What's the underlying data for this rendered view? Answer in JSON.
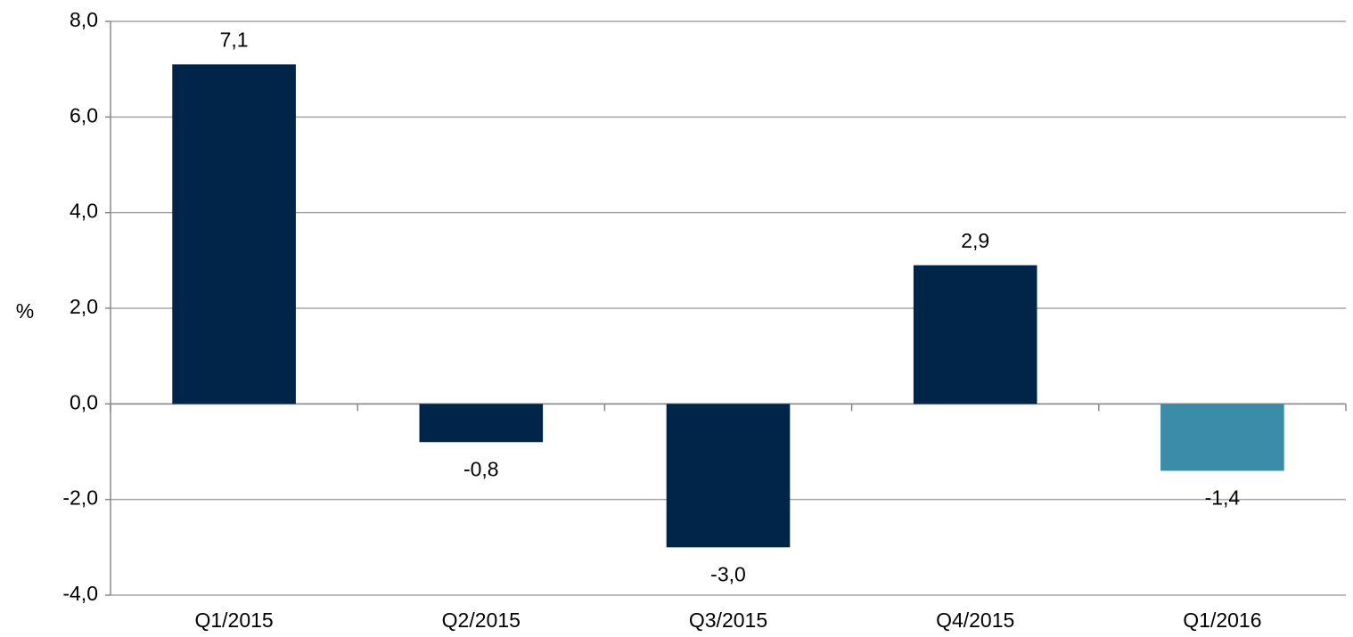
{
  "chart_data": {
    "type": "bar",
    "y_label": "%",
    "categories": [
      "Q1/2015",
      "Q2/2015",
      "Q3/2015",
      "Q4/2015",
      "Q1/2016"
    ],
    "values": [
      7.1,
      -0.8,
      -3.0,
      2.9,
      -1.4
    ],
    "value_labels": [
      "7,1",
      "-0,8",
      "-3,0",
      "2,9",
      "-1,4"
    ],
    "colors": [
      "#002548",
      "#002548",
      "#002548",
      "#002548",
      "#3a8ca8"
    ],
    "ylim": [
      -4,
      8
    ],
    "yticks": [
      {
        "value": -4,
        "label": "-4,0"
      },
      {
        "value": -2,
        "label": "-2,0"
      },
      {
        "value": 0,
        "label": "0,0"
      },
      {
        "value": 2,
        "label": "2,0"
      },
      {
        "value": 4,
        "label": "4,0"
      },
      {
        "value": 6,
        "label": "6,0"
      },
      {
        "value": 8,
        "label": "8,0"
      }
    ],
    "grid": true
  }
}
